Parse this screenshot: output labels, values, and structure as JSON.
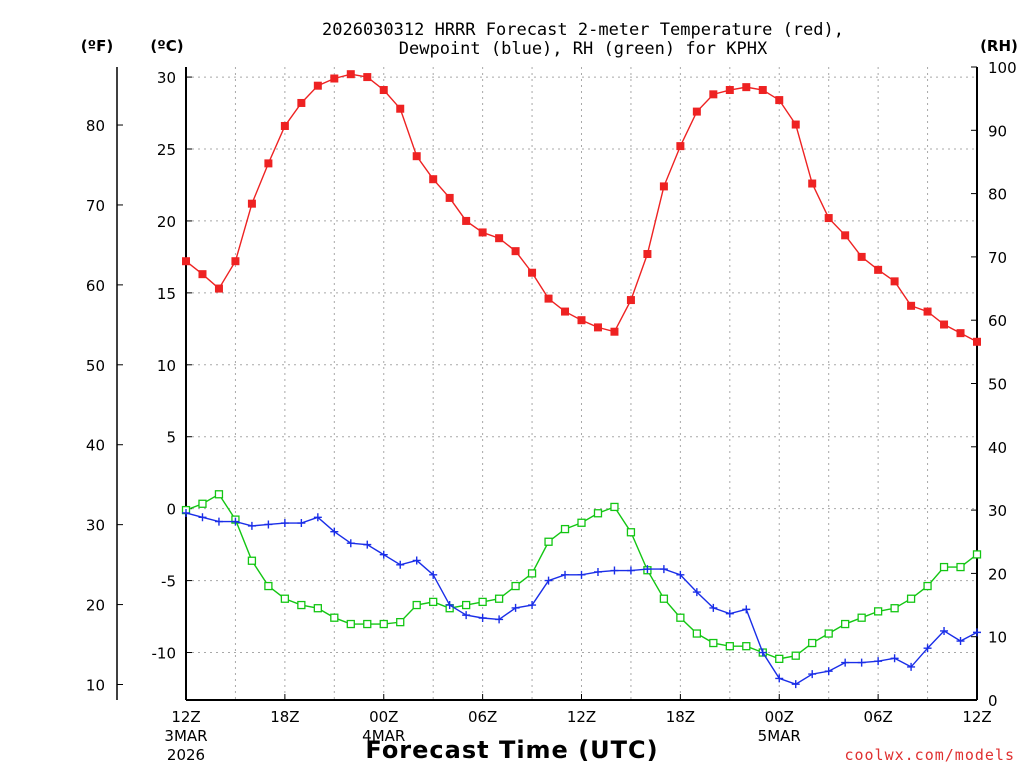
{
  "chart_data": {
    "type": "line",
    "title": "2026030312 HRRR Forecast 2-meter Temperature (red),",
    "subtitle": "Dewpoint (blue), RH (green) for KPHX",
    "xlabel": "Forecast Time (UTC)",
    "watermark": "coolwx.com/models",
    "units": {
      "fahrenheit": "(ºF)",
      "celsius": "(ºC)",
      "rh": "(RH)"
    },
    "x_range": [
      0,
      48
    ],
    "x_ticks": [
      {
        "x": 0,
        "label": "12Z",
        "date": "3MAR",
        "year": "2026"
      },
      {
        "x": 6,
        "label": "18Z"
      },
      {
        "x": 12,
        "label": "00Z",
        "date": "4MAR"
      },
      {
        "x": 18,
        "label": "06Z"
      },
      {
        "x": 24,
        "label": "12Z"
      },
      {
        "x": 30,
        "label": "18Z"
      },
      {
        "x": 36,
        "label": "00Z",
        "date": "5MAR"
      },
      {
        "x": 42,
        "label": "06Z"
      },
      {
        "x": 48,
        "label": "12Z"
      }
    ],
    "celsius_range": [
      -13.3,
      30.7
    ],
    "celsius_ticks": [
      "-10",
      "-5",
      "0",
      "5",
      "10",
      "15",
      "20",
      "25",
      "30"
    ],
    "fahrenheit_ticks": [
      "10",
      "20",
      "30",
      "40",
      "50",
      "60",
      "70",
      "80"
    ],
    "rh_range": [
      0,
      100
    ],
    "rh_ticks": [
      "0",
      "10",
      "20",
      "30",
      "40",
      "50",
      "60",
      "70",
      "80",
      "90",
      "100"
    ],
    "colors": {
      "temperature": "#ee2222",
      "dewpoint": "#1a2ee8",
      "rh": "#13c613"
    },
    "series": [
      {
        "name": "Temperature",
        "units": "C",
        "values": [
          17.2,
          16.3,
          15.3,
          17.2,
          21.2,
          24.0,
          26.6,
          28.2,
          29.4,
          29.9,
          30.2,
          30.0,
          29.1,
          27.8,
          24.5,
          22.9,
          21.6,
          20.0,
          19.2,
          18.8,
          17.9,
          16.4,
          14.6,
          13.7,
          13.1,
          12.6,
          12.3,
          14.5,
          17.7,
          22.4,
          25.2,
          27.6,
          28.8,
          29.1,
          29.3,
          29.1,
          28.4,
          26.7,
          22.6,
          20.2,
          19.0,
          17.5,
          16.6,
          15.8,
          14.1,
          13.7,
          12.8,
          12.2,
          11.6
        ]
      },
      {
        "name": "Dewpoint",
        "units": "C",
        "values": [
          -0.3,
          -0.6,
          -0.9,
          -0.9,
          -1.2,
          -1.1,
          -1.0,
          -1.0,
          -0.6,
          -1.6,
          -2.4,
          -2.5,
          -3.2,
          -3.9,
          -3.6,
          -4.6,
          -6.7,
          -7.4,
          -7.6,
          -7.7,
          -6.9,
          -6.7,
          -5.0,
          -4.6,
          -4.6,
          -4.4,
          -4.3,
          -4.3,
          -4.2,
          -4.2,
          -4.6,
          -5.8,
          -6.9,
          -7.3,
          -7.0,
          -10.0,
          -11.8,
          -12.2,
          -11.5,
          -11.3,
          -10.7,
          -10.7,
          -10.6,
          -10.4,
          -11.0,
          -9.7,
          -8.5,
          -9.2,
          -8.6
        ]
      },
      {
        "name": "RH",
        "units": "%",
        "values": [
          30.0,
          31.0,
          32.5,
          28.5,
          22.0,
          18.0,
          16.0,
          15.0,
          14.5,
          13.0,
          12.0,
          12.0,
          12.0,
          12.3,
          15.0,
          15.5,
          14.5,
          15.0,
          15.5,
          16.0,
          18.0,
          20.0,
          25.0,
          27.0,
          28.0,
          29.5,
          30.5,
          26.5,
          20.5,
          16.0,
          13.0,
          10.5,
          9.0,
          8.5,
          8.5,
          7.5,
          6.5,
          7.0,
          9.0,
          10.5,
          12.0,
          13.0,
          14.0,
          14.5,
          16.0,
          18.0,
          21.0,
          21.0,
          23.0
        ]
      }
    ]
  }
}
